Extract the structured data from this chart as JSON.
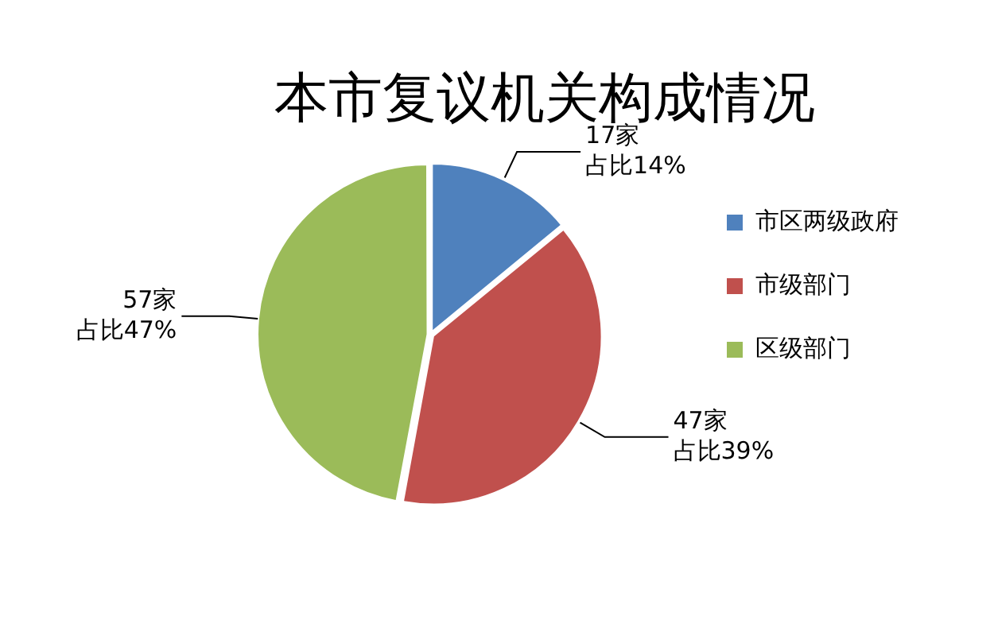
{
  "chart_data": {
    "type": "pie",
    "title": "本市复议机关构成情况",
    "categories": [
      "市区两级政府",
      "市级部门",
      "区级部门"
    ],
    "values": [
      17,
      47,
      57
    ],
    "colors": [
      "#4f81bd",
      "#c0504d",
      "#9bbb59"
    ],
    "value_labels": [
      "17家占比14%",
      "47家占比39%",
      "57家占比47%"
    ],
    "legend": "right"
  }
}
